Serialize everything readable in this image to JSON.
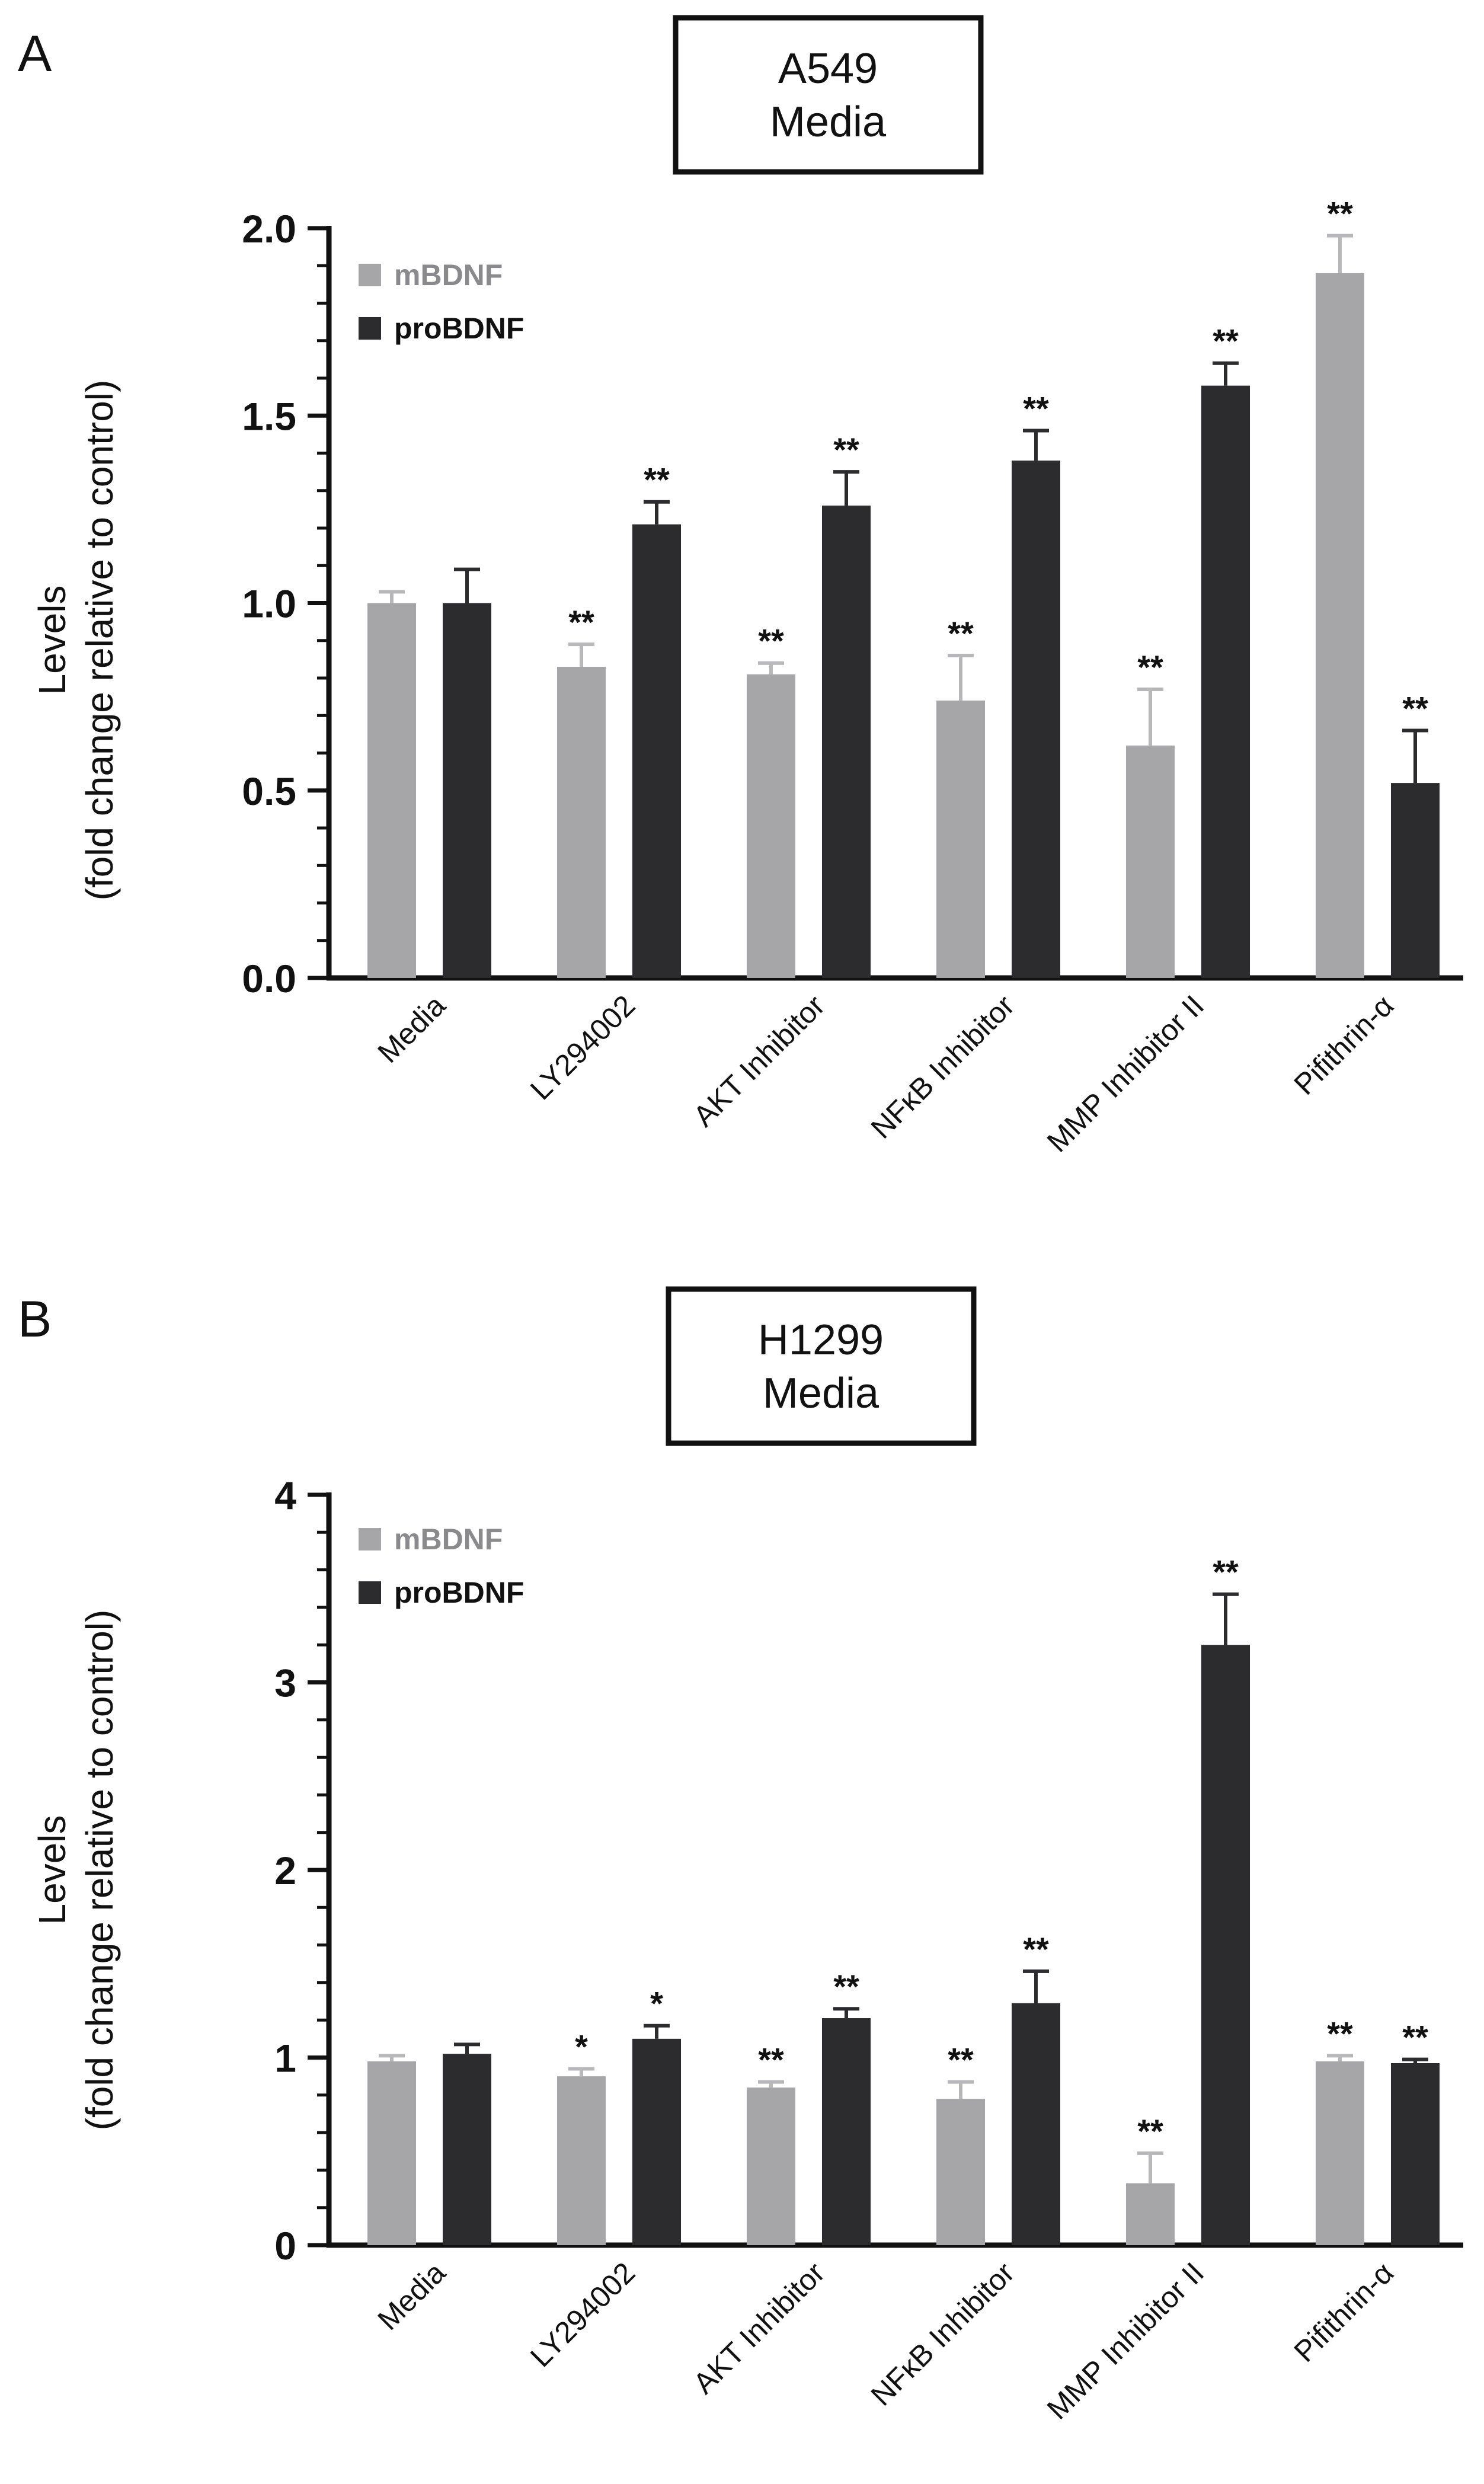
{
  "colors": {
    "mBDNF": "#a6a6a8",
    "proBDNF": "#2c2c2e",
    "axis": "#111111"
  },
  "chart_data": [
    {
      "type": "bar",
      "panel": "A",
      "title": [
        "A549",
        "Media"
      ],
      "ylabel": [
        "Levels",
        "(fold change relative to control)"
      ],
      "xlabel": "",
      "ylim": [
        0,
        2.0
      ],
      "yticks": [
        0.0,
        0.5,
        1.0,
        1.5,
        2.0
      ],
      "ytick_labels": [
        "0.0",
        "0.5",
        "1.0",
        "1.5",
        "2.0"
      ],
      "minor_per_major": 5,
      "categories": [
        "Media",
        "LY294002",
        "AKT Inhibitor",
        "NFκB Inhibitor",
        "MMP Inhibitor II",
        "Pifithrin-α"
      ],
      "legend": {
        "position": "top-left",
        "entries": [
          "mBDNF",
          "proBDNF"
        ]
      },
      "series": [
        {
          "name": "mBDNF",
          "values": [
            1.0,
            0.83,
            0.81,
            0.74,
            0.62,
            1.88
          ],
          "errors": [
            0.03,
            0.06,
            0.03,
            0.12,
            0.15,
            0.1
          ],
          "sig": [
            "",
            "**",
            "**",
            "**",
            "**",
            "**"
          ]
        },
        {
          "name": "proBDNF",
          "values": [
            1.0,
            1.21,
            1.26,
            1.38,
            1.58,
            0.52
          ],
          "errors": [
            0.09,
            0.06,
            0.09,
            0.08,
            0.06,
            0.14
          ],
          "sig": [
            "",
            "**",
            "**",
            "**",
            "**",
            "**"
          ]
        }
      ]
    },
    {
      "type": "bar",
      "panel": "B",
      "title": [
        "H1299",
        "Media"
      ],
      "ylabel": [
        "Levels",
        "(fold change relative to control)"
      ],
      "xlabel": "",
      "ylim": [
        0,
        4
      ],
      "yticks": [
        0,
        1,
        2,
        3,
        4
      ],
      "ytick_labels": [
        "0",
        "1",
        "2",
        "3",
        "4"
      ],
      "minor_per_major": 5,
      "categories": [
        "Media",
        "LY294002",
        "AKT Inhibitor",
        "NFκB Inhibitor",
        "MMP Inhibitor II",
        "Pifithrin-α"
      ],
      "legend": {
        "position": "top-left",
        "entries": [
          "mBDNF",
          "proBDNF"
        ]
      },
      "series": [
        {
          "name": "mBDNF",
          "values": [
            0.98,
            0.9,
            0.84,
            0.78,
            0.33,
            0.98
          ],
          "errors": [
            0.03,
            0.04,
            0.03,
            0.09,
            0.16,
            0.03
          ],
          "sig": [
            "",
            "*",
            "**",
            "**",
            "**",
            "**"
          ]
        },
        {
          "name": "proBDNF",
          "values": [
            1.02,
            1.1,
            1.21,
            1.29,
            3.2,
            0.97
          ],
          "errors": [
            0.05,
            0.07,
            0.05,
            0.17,
            0.27,
            0.02
          ],
          "sig": [
            "",
            "*",
            "**",
            "**",
            "**",
            "**"
          ]
        }
      ]
    }
  ]
}
